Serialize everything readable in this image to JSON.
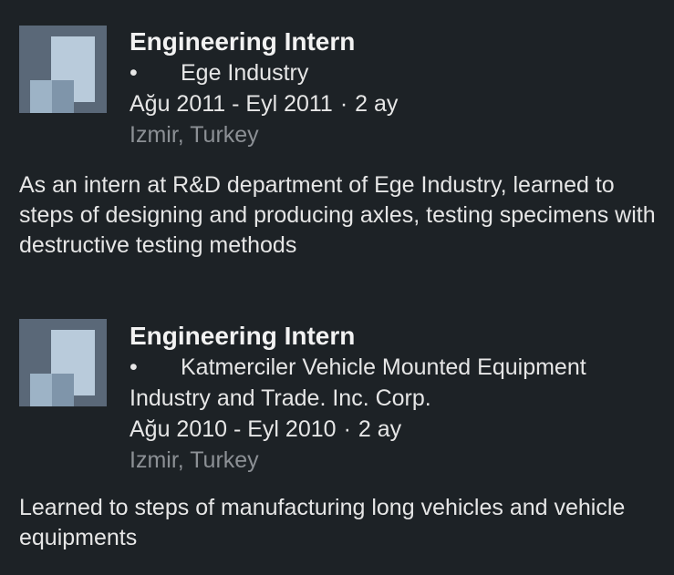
{
  "experiences": [
    {
      "logo_icon": "company-logo-placeholder-icon",
      "title": "Engineering Intern",
      "bullet": "•",
      "company": "Ege Industry",
      "dates": "Ağu 2011 - Eyl 2011",
      "separator": "·",
      "duration": "2 ay",
      "location": "Izmir, Turkey",
      "description": "As an intern at R&D department of Ege Industry, learned to steps of designing and producing axles, testing specimens with destructive testing methods"
    },
    {
      "logo_icon": "company-logo-placeholder-icon",
      "title": "Engineering Intern",
      "bullet": "•",
      "company": "Katmerciler Vehicle Mounted Equipment Industry and Trade. Inc. Corp.",
      "dates": "Ağu 2010 - Eyl 2010",
      "separator": "·",
      "duration": "2 ay",
      "location": "Izmir, Turkey",
      "description": "Learned to steps of manufacturing long vehicles and vehicle equipments"
    }
  ],
  "colors": {
    "background": "#1d2226",
    "text_primary": "#e6e6e6",
    "text_secondary": "#8c9095",
    "logo_dark": "#5a6878",
    "logo_light": "#b9cbdb"
  }
}
